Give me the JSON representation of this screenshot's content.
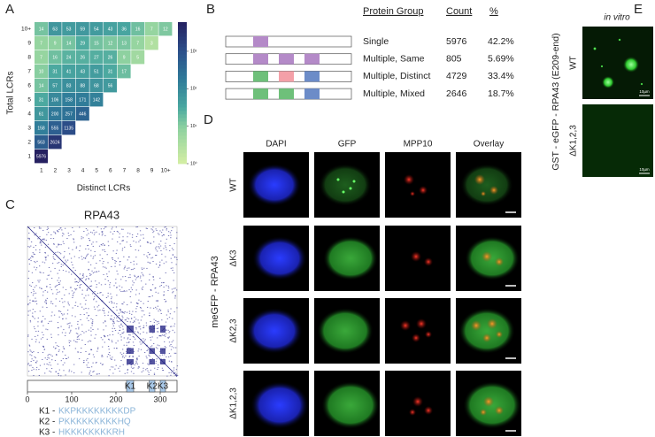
{
  "chart_data": {
    "type": "heatmap",
    "panel_label": "A",
    "x_label": "Distinct LCRs",
    "y_label": "Total LCRs",
    "categories_x": [
      "1",
      "2",
      "3",
      "4",
      "5",
      "6",
      "7",
      "8",
      "9",
      "10+"
    ],
    "categories_y": [
      "1",
      "2",
      "3",
      "4",
      "5",
      "6",
      "7",
      "8",
      "9",
      "10+"
    ],
    "values": [
      [
        5976
      ],
      [
        563,
        2624
      ],
      [
        158,
        555,
        1135
      ],
      [
        61,
        200,
        257,
        446
      ],
      [
        31,
        106,
        158,
        171,
        142
      ],
      [
        14,
        57,
        83,
        88,
        68,
        56
      ],
      [
        10,
        31,
        41,
        43,
        51,
        31,
        17
      ],
      [
        7,
        16,
        24,
        26,
        27,
        26,
        9,
        5
      ],
      [
        7,
        9,
        14,
        29,
        15,
        12,
        13,
        7,
        3
      ],
      [
        14,
        63,
        53,
        59,
        54,
        43,
        36,
        16,
        7,
        12
      ]
    ],
    "color_scale": "log",
    "clim": [
      1,
      6000
    ],
    "cticks": [
      {
        "value": 1,
        "label": "10⁰"
      },
      {
        "value": 10,
        "label": "10¹"
      },
      {
        "value": 100,
        "label": "10²"
      },
      {
        "value": 1000,
        "label": "10³"
      }
    ]
  },
  "panel_b": {
    "label": "B",
    "header": [
      "Protein Group",
      "Count",
      "%"
    ],
    "rows": [
      [
        "Single",
        5976,
        "42.2%"
      ],
      [
        "Multiple, Same",
        805,
        "5.69%"
      ],
      [
        "Multiple, Distinct",
        4729,
        "33.4%"
      ],
      [
        "Multiple, Mixed",
        2646,
        "18.7%"
      ]
    ]
  },
  "panel_c": {
    "label": "C",
    "title": "RPA43",
    "xlim": [
      0,
      338
    ],
    "xticks": [
      0,
      100,
      200,
      300
    ],
    "domains": [
      "K1",
      "K2",
      "K3"
    ],
    "sequences": [
      {
        "label": "K1 -",
        "sequence": "KKPKKKKKKKKDP"
      },
      {
        "label": "K2 -",
        "sequence": "PKKKKKKKKKHQ"
      },
      {
        "label": "K3 -",
        "sequence": "HKKKKKKKKRH"
      }
    ]
  },
  "panel_d": {
    "label": "D",
    "columns": [
      "DAPI",
      "GFP",
      "MPP10",
      "Overlay"
    ],
    "rows": [
      "WT",
      "ΔK3",
      "ΔK2,3",
      "ΔK1,2,3"
    ],
    "side_label": "meGFP - RPA43"
  },
  "panel_e": {
    "label": "E",
    "title": "in vitro",
    "rows": [
      "WT",
      "ΔK1,2,3"
    ],
    "side_label": "GST - eGFP - RPA43 (E209-end)",
    "scale_labels": [
      "10µm",
      "10µm"
    ]
  }
}
